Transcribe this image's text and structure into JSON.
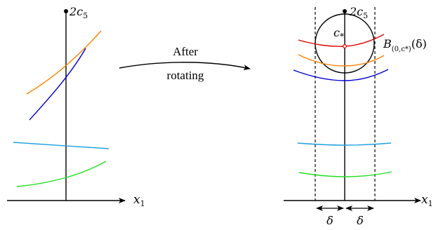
{
  "left_panel": {
    "point_label_main": "2c",
    "point_label_sub": "5",
    "axis_label_main": "x",
    "axis_label_sub": "1"
  },
  "transition": {
    "line1": "After",
    "line2": "rotating"
  },
  "right_panel": {
    "point_label_main": "2c",
    "point_label_sub": "5",
    "center_label_main": "c",
    "center_label_sub": "*",
    "ball_label": "B",
    "ball_label_sub": "(0,c*)",
    "ball_label_arg": "(δ)",
    "axis_label_main": "x",
    "axis_label_sub": "1",
    "delta_left": "δ",
    "delta_right": "δ"
  },
  "colors": {
    "red": "#e00000",
    "orange": "#ff8000",
    "blue": "#0000d0",
    "cyan": "#20a0e0",
    "green": "#20e020",
    "black": "#000000"
  }
}
